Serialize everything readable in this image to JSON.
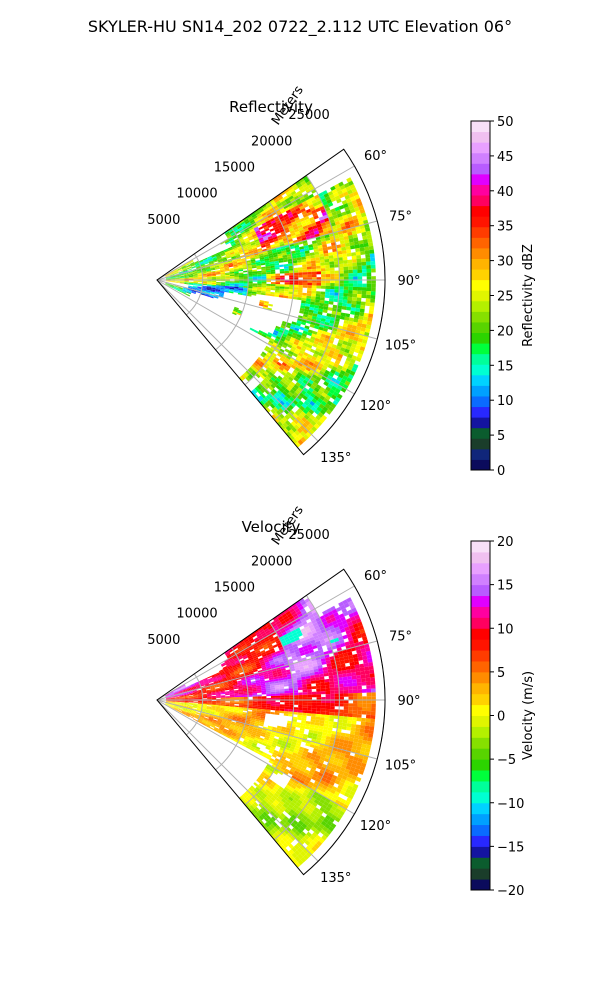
{
  "suptitle": "SKYLER-HU  SN14_202  0722_2.112 UTC Elevation 06°",
  "colors": {
    "grid": "#b0b0b0",
    "frame": "#000000"
  },
  "chart_data": [
    {
      "type": "heatmap",
      "subtype": "polar-sector (PPI)",
      "title": "Reflectivity",
      "radial_axis_label": "Meters",
      "radial_ticks": [
        5000,
        10000,
        15000,
        20000,
        25000
      ],
      "radial_tick_labels": [
        "5000",
        "10000",
        "15000",
        "20000",
        "25000"
      ],
      "radial_max": 25000,
      "azimuth_range_deg": [
        55,
        140
      ],
      "azimuth_ticks": [
        60,
        75,
        90,
        105,
        120,
        135
      ],
      "azimuth_tick_labels": [
        "60°",
        "75°",
        "90°",
        "105°",
        "120°",
        "135°"
      ],
      "grid": true,
      "colorbar": {
        "label": "Reflectivity dBZ",
        "min": 0,
        "max": 50,
        "ticks": [
          0,
          5,
          10,
          15,
          20,
          25,
          30,
          35,
          40,
          45,
          50
        ],
        "tick_labels": [
          "0",
          "5",
          "10",
          "15",
          "20",
          "25",
          "30",
          "35",
          "40",
          "45",
          "50"
        ],
        "palette": [
          "#0b0b5c",
          "#10267a",
          "#1a3d2a",
          "#0b5c2e",
          "#1414a0",
          "#2828ff",
          "#0a6bff",
          "#00a0ff",
          "#00d2ff",
          "#00ffd2",
          "#00ff9a",
          "#00ff3c",
          "#2cd400",
          "#58d400",
          "#86e000",
          "#b4f000",
          "#e0f500",
          "#ffff00",
          "#ffd200",
          "#ffb400",
          "#ff8c00",
          "#ff6400",
          "#ff3c00",
          "#ff1400",
          "#ff0000",
          "#ff0060",
          "#ff00a0",
          "#e000ff",
          "#b85cff",
          "#d080ff",
          "#e8a0ff",
          "#f0c0f0",
          "#f8e0f8"
        ],
        "pos_fraction_cb": null
      },
      "field_description": "mostly 15-30 dBZ echoes across sector; cores of 35-45 dBZ near 60-75° at 12-20 km; sparse echoes 100-140°"
    },
    {
      "type": "heatmap",
      "subtype": "polar-sector (PPI)",
      "title": "Velocity",
      "radial_axis_label": "Meters",
      "radial_ticks": [
        5000,
        10000,
        15000,
        20000,
        25000
      ],
      "radial_tick_labels": [
        "5000",
        "10000",
        "15000",
        "20000",
        "25000"
      ],
      "radial_max": 25000,
      "azimuth_range_deg": [
        55,
        140
      ],
      "azimuth_ticks": [
        60,
        75,
        90,
        105,
        120,
        135
      ],
      "azimuth_tick_labels": [
        "60°",
        "75°",
        "90°",
        "105°",
        "120°",
        "135°"
      ],
      "grid": true,
      "colorbar": {
        "label": "Velocity (m/s)",
        "min": -20,
        "max": 20,
        "ticks": [
          -20,
          -15,
          -10,
          -5,
          0,
          5,
          10,
          15,
          20
        ],
        "tick_labels": [
          "−20",
          "−15",
          "−10",
          "−5",
          "0",
          "5",
          "10",
          "15",
          "20"
        ],
        "palette": [
          "#0b0b5c",
          "#1a3d2a",
          "#0b5c2e",
          "#1414a0",
          "#2828ff",
          "#0a6bff",
          "#00a0ff",
          "#00d2ff",
          "#00ffd2",
          "#00ff9a",
          "#00ff3c",
          "#2cd400",
          "#58d400",
          "#86e000",
          "#b4f000",
          "#e0f500",
          "#ffff00",
          "#ffd200",
          "#ffb400",
          "#ff8c00",
          "#ff6400",
          "#ff3c00",
          "#ff1400",
          "#ff0000",
          "#ff0060",
          "#ff00a0",
          "#e000ff",
          "#b85cff",
          "#d080ff",
          "#e8a0ff",
          "#f0c0f0",
          "#f8e0f8"
        ]
      },
      "field_description": "receding +10 to +15 m/s (magenta/red) at 55-90°, 0 to +5 m/s (yellow/orange) at 90-135°, small -10 m/s patch near 65° at 18 km"
    }
  ]
}
